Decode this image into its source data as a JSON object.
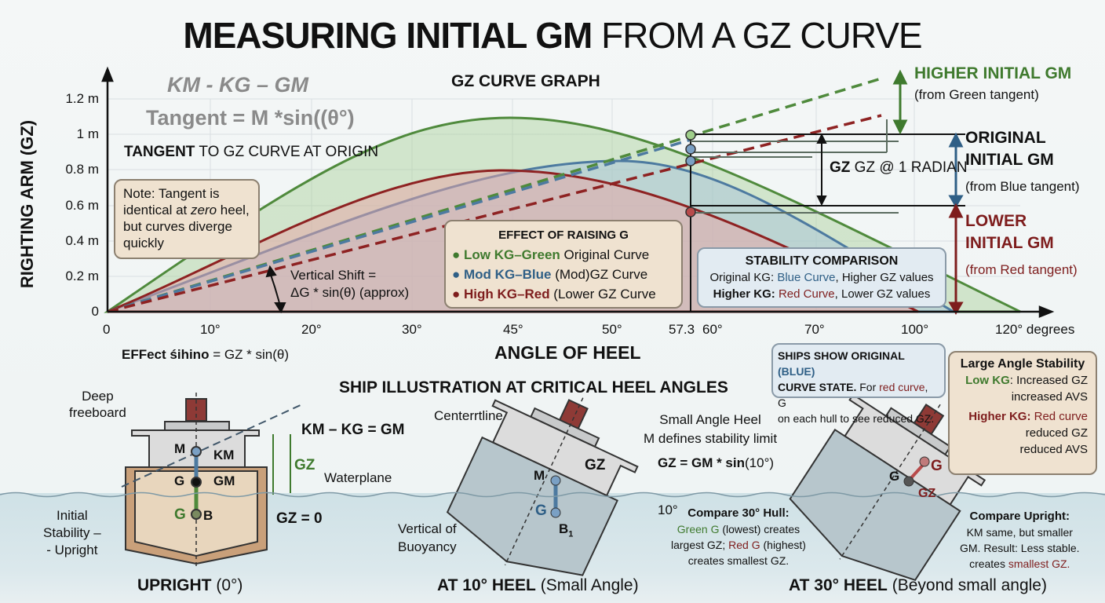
{
  "title": {
    "bold": "MEASURING INITIAL GM",
    "rest": " FROM A GZ CURVE"
  },
  "graph": {
    "heading": "GZ CURVE GRAPH",
    "formula1": "KM - KG – GM",
    "formula2": "Tangent  = M *sin((θ°)",
    "tangent_label_bold": "TANGENT",
    "tangent_label_rest": " TO GZ CURVE AT ORIGIN",
    "y_axis_label": "RIGHTING ARM (GZ)",
    "y_ticks": [
      "1.2 m",
      "1 m",
      "0.8 m",
      "0.6 m",
      "0.4 m",
      "0.2 m",
      "0"
    ],
    "x_ticks": [
      "0",
      "10°",
      "20°",
      "30°",
      "45°",
      "50°",
      "57.3",
      "60°",
      "70°",
      "100°",
      "120° degrees"
    ],
    "x_axis_label": "ANGLE OF HEEL",
    "effect_formula_bold": "EFFect śihino",
    "effect_formula_rest": " = GZ * sin(θ)",
    "note": [
      "Note: Tangent is",
      "identical at ",
      "zero",
      " heel,",
      "but curves diverge",
      "quickly"
    ],
    "vertical_shift": [
      "Vertical Shift =",
      "ΔG * sin(θ) (approx)"
    ],
    "gz_radian": "GZ @ 1 RADIAN",
    "higher": {
      "title": "HIGHER INITIAL GM",
      "sub": "(from Green tangent)"
    },
    "original": {
      "title1": "ORIGINAL",
      "title2": "INITIAL GM",
      "sub": "(from Blue tangent)"
    },
    "lower": {
      "title1": "LOWER",
      "title2": "INITIAL GM",
      "sub": "(from Red tangent)"
    },
    "effect_box": {
      "title": "EFFECT OF RAISING G",
      "items": [
        {
          "key": "Low KG–Green",
          "rest": " Original Curve"
        },
        {
          "key": "Mod KG–Blue",
          "rest": " (Mod)GZ Curve"
        },
        {
          "key": "High KG–Red",
          "rest": " (Lower GZ Curve"
        }
      ]
    },
    "stability_box": {
      "title": "STABILITY COMPARISON",
      "line1": [
        "Original KG: ",
        "Blue Curve",
        ", Higher GZ values"
      ],
      "line2": [
        "Higher KG: ",
        "Red Curve",
        ", Lower GZ values"
      ]
    }
  },
  "colors": {
    "green": "#3f7a2e",
    "blue": "#2f5f86",
    "red": "#7e1d1d"
  },
  "ships": {
    "heading": "SHIP ILLUSTRATION AT CRITICAL HEEL ANGLES",
    "upright": {
      "caption_bold": "UPRIGHT",
      "caption_rest": " (0°)",
      "deep": [
        "Deep",
        "freeboard"
      ],
      "initial": [
        "Initial",
        "Stability –",
        "- Upright"
      ],
      "formula": "KM – KG = GM",
      "gz": "GZ",
      "waterplane": "Waterplane",
      "gz0": "GZ = 0",
      "M": "M",
      "KM": "KM",
      "G": "G",
      "GM": "GM",
      "G2": "G",
      "B": "B"
    },
    "heel10": {
      "caption_bold": "AT 10° HEEL",
      "caption_rest": " (Small Angle)",
      "centerline": "Centerrtline",
      "small": [
        "Small Angle Heel",
        "M defines stability limit"
      ],
      "formula_bold": "GZ = GM * sin",
      "formula_rest": "(10°)",
      "vertical": [
        "Vertical of",
        "Buoyancy"
      ],
      "angle": "10°",
      "M": "M",
      "G": "G",
      "B": "B",
      "sub": "1",
      "GZ": "GZ",
      "compare": {
        "title": "Compare 30° Hull:",
        "l1a": "Green G",
        "l1b": " (lowest) creates",
        "l2a": "largest GZ; ",
        "l2b": "Red G",
        "l2c": " (highest)",
        "l3": "creates smallest GZ."
      }
    },
    "heel30": {
      "caption_bold": "AT 30° HEEL",
      "caption_rest": " (Beyond small angle)",
      "G1": "G",
      "G2": "G",
      "GZ": "GZ",
      "callout": {
        "b1": "SHIPS SHOW ORIGINAL ",
        "blue": "(BLUE)",
        "b2": "CURVE STATE.",
        "r1": " For ",
        "red": "red curve",
        ", G": ", G",
        "l3": "on each hull to see reduced GZ."
      },
      "large": {
        "title": "Large Angle Stability",
        "low": "Low KG",
        "low_rest": ": Increased GZ",
        "low2": "increased AVS",
        "high": "Higher KG:",
        "high_rest": " Red curve",
        "high2": "reduced GZ",
        "high3": "reduced AVS"
      },
      "compare": {
        "title": "Compare Upright:",
        "l1": "KM same, but smaller",
        "l2": "GM. Result: Less stable.",
        "l3a": "creates ",
        "l3b": "smallest GZ."
      }
    }
  }
}
